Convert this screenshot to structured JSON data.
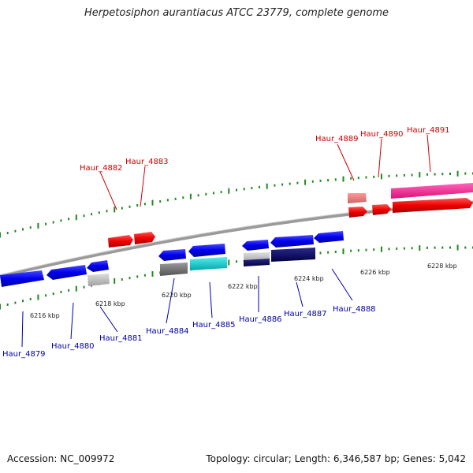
{
  "title": "Herpetosiphon aurantiacus ATCC 23779, complete genome",
  "footer": {
    "accession": "Accession: NC_009972",
    "topology": "Topology: circular; Length: 6,346,587 bp; Genes: 5,042"
  },
  "scale_labels": [
    "6216 kbp",
    "6218 kbp",
    "6220 kbp",
    "6222 kbp",
    "6224 kbp",
    "6226 kbp",
    "6228 kbp"
  ],
  "genes_forward": [
    {
      "name": "Haur_4882",
      "color": "#cc0000"
    },
    {
      "name": "Haur_4883",
      "color": "#cc0000"
    },
    {
      "name": "Haur_4889",
      "color": "#cc0000"
    },
    {
      "name": "Haur_4890",
      "color": "#cc0000"
    },
    {
      "name": "Haur_4891",
      "color": "#cc0000"
    }
  ],
  "genes_reverse": [
    {
      "name": "Haur_4879",
      "color": "#0000aa"
    },
    {
      "name": "Haur_4880",
      "color": "#0000aa"
    },
    {
      "name": "Haur_4881",
      "color": "#0000aa"
    },
    {
      "name": "Haur_4884",
      "color": "#0000aa"
    },
    {
      "name": "Haur_4885",
      "color": "#0000aa"
    },
    {
      "name": "Haur_4886",
      "color": "#0000aa"
    },
    {
      "name": "Haur_4887",
      "color": "#0000aa"
    },
    {
      "name": "Haur_4888",
      "color": "#0000aa"
    }
  ],
  "colors": {
    "forward_gene": "#ff0000",
    "reverse_gene": "#0000ee",
    "backbone": "#8a8a8a",
    "ticks": "#228822",
    "pink_feature": "#ff3399",
    "cyan_feature": "#00cccc",
    "navy_feature": "#000066",
    "gray_feature": "#777777",
    "light_gray_feature": "#bbbbbb",
    "salmon_feature": "#ee7777"
  }
}
